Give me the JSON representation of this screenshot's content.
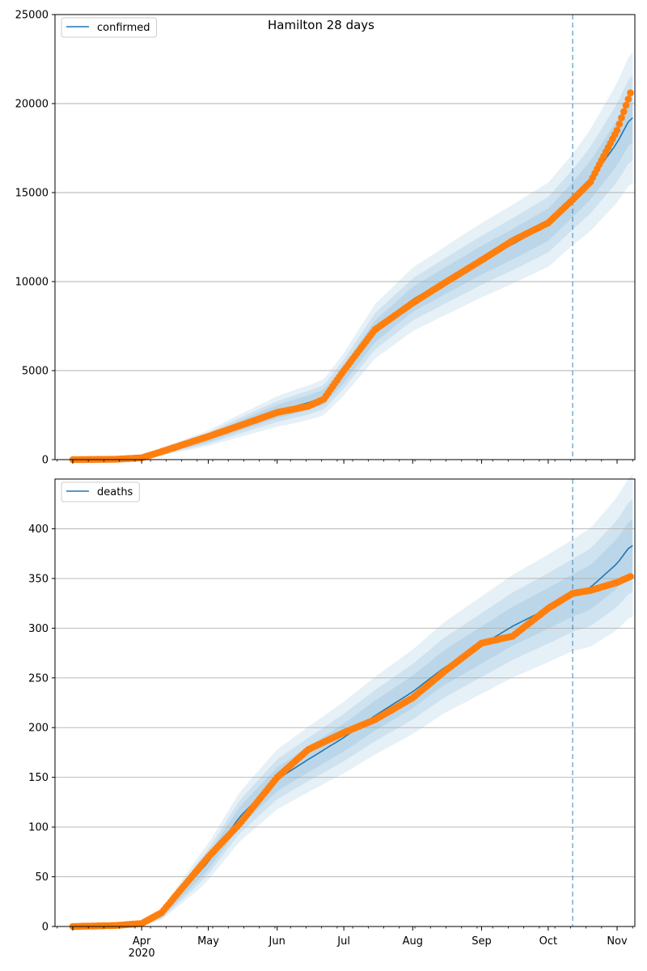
{
  "figure": {
    "title": "Hamilton 28 days"
  },
  "chart_data": [
    {
      "type": "line",
      "legend": {
        "label": "confirmed",
        "placement": "top-left"
      },
      "grid": "y",
      "ylim": [
        0,
        25000
      ],
      "yticks": [
        0,
        5000,
        10000,
        15000,
        20000,
        25000
      ],
      "forecast_start": "2020-10-12",
      "series": [
        {
          "name": "confirmed",
          "kind": "model",
          "x": [
            "2020-03-01",
            "2020-03-20",
            "2020-04-01",
            "2020-04-10",
            "2020-05-01",
            "2020-05-15",
            "2020-06-01",
            "2020-06-15",
            "2020-06-22",
            "2020-07-01",
            "2020-07-15",
            "2020-08-01",
            "2020-08-15",
            "2020-09-01",
            "2020-09-15",
            "2020-10-01",
            "2020-10-12",
            "2020-10-20",
            "2020-11-01",
            "2020-11-07"
          ],
          "y": [
            0,
            20,
            100,
            450,
            1200,
            1900,
            2700,
            3200,
            3500,
            4800,
            7200,
            9000,
            10000,
            11200,
            12100,
            13200,
            14600,
            15700,
            17800,
            19200
          ]
        },
        {
          "name": "",
          "kind": "observed",
          "x": [
            "2020-03-01",
            "2020-03-20",
            "2020-04-01",
            "2020-04-10",
            "2020-05-01",
            "2020-05-15",
            "2020-06-01",
            "2020-06-15",
            "2020-06-22",
            "2020-07-01",
            "2020-07-15",
            "2020-08-01",
            "2020-08-15",
            "2020-09-01",
            "2020-09-15",
            "2020-10-01",
            "2020-10-12",
            "2020-10-20",
            "2020-11-01",
            "2020-11-07"
          ],
          "y": [
            0,
            20,
            100,
            450,
            1300,
            1900,
            2650,
            3000,
            3400,
            5000,
            7300,
            8800,
            9900,
            11200,
            12300,
            13300,
            14600,
            15600,
            18500,
            20600
          ]
        }
      ]
    },
    {
      "type": "line",
      "legend": {
        "label": "deaths",
        "placement": "top-left"
      },
      "grid": "y",
      "ylim": [
        0,
        450
      ],
      "yticks": [
        0,
        50,
        100,
        150,
        200,
        250,
        300,
        350,
        400
      ],
      "xticks": [
        "Apr\n2020",
        "May",
        "Jun",
        "Jul",
        "Aug",
        "Sep",
        "Oct",
        "Nov"
      ],
      "forecast_start": "2020-10-12",
      "series": [
        {
          "name": "deaths",
          "kind": "model",
          "x": [
            "2020-03-01",
            "2020-03-20",
            "2020-04-01",
            "2020-04-10",
            "2020-05-01",
            "2020-05-15",
            "2020-06-01",
            "2020-06-15",
            "2020-07-01",
            "2020-07-15",
            "2020-08-01",
            "2020-08-15",
            "2020-09-01",
            "2020-09-15",
            "2020-10-01",
            "2020-10-12",
            "2020-10-20",
            "2020-11-01",
            "2020-11-07"
          ],
          "y": [
            0,
            1,
            3,
            12,
            65,
            110,
            148,
            168,
            190,
            212,
            236,
            260,
            283,
            302,
            320,
            333,
            341,
            365,
            383
          ]
        },
        {
          "name": "",
          "kind": "observed",
          "x": [
            "2020-03-01",
            "2020-03-20",
            "2020-04-01",
            "2020-04-10",
            "2020-05-01",
            "2020-05-15",
            "2020-06-01",
            "2020-06-15",
            "2020-07-01",
            "2020-07-15",
            "2020-08-01",
            "2020-08-15",
            "2020-09-01",
            "2020-09-15",
            "2020-10-01",
            "2020-10-12",
            "2020-10-20",
            "2020-11-01",
            "2020-11-07"
          ],
          "y": [
            0,
            1,
            3,
            14,
            70,
            103,
            150,
            178,
            195,
            208,
            230,
            256,
            285,
            292,
            320,
            335,
            338,
            346,
            352
          ]
        }
      ]
    }
  ],
  "colors": {
    "model": "#1f77b4",
    "observed": "#ff7f0e",
    "band": "#1f77b4",
    "grid": "#b0b0b0",
    "forecast_line": "#1f77b4"
  }
}
